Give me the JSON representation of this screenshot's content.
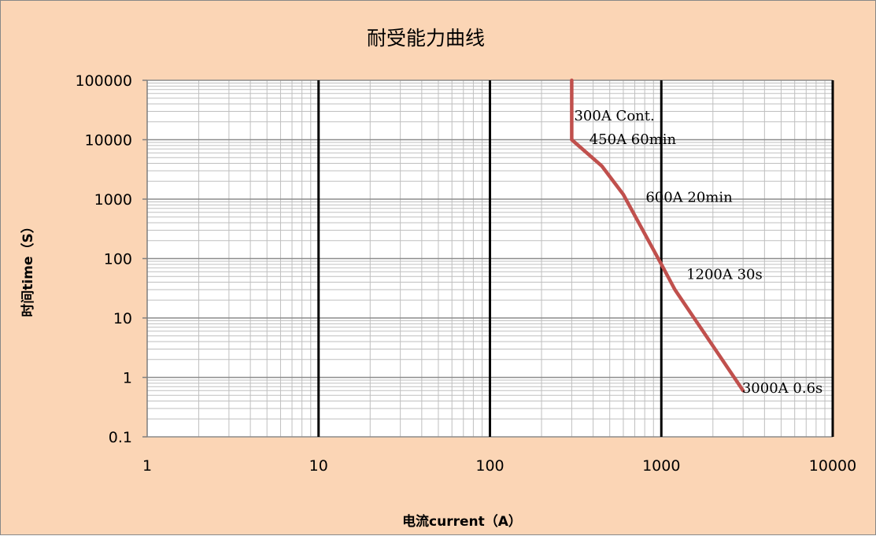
{
  "chart_data": {
    "type": "line",
    "title": "耐受能力曲线",
    "xlabel": "电流current（A）",
    "ylabel": "时间time（S）",
    "x_scale": "log",
    "y_scale": "log",
    "xlim": [
      1,
      10000
    ],
    "ylim": [
      0.1,
      100000
    ],
    "x_ticks": [
      "1",
      "10",
      "100",
      "1000",
      "10000"
    ],
    "y_ticks": [
      "100000",
      "10000",
      "1000",
      "100",
      "10",
      "1",
      "0.1"
    ],
    "grid": "log minor and major; decade lines emphasized",
    "legend": "none",
    "series": [
      {
        "color": "#c0504d",
        "x": [
          300,
          300,
          450,
          600,
          1000,
          1200,
          3000
        ],
        "y": [
          100000,
          10000,
          3600,
          1200,
          80,
          30,
          0.6
        ]
      }
    ],
    "annotations": [
      {
        "text": "300A Cont.",
        "x": 310,
        "y": 21000
      },
      {
        "text": "450A 60min",
        "x": 380,
        "y": 8500
      },
      {
        "text": "600A 20min",
        "x": 810,
        "y": 900
      },
      {
        "text": "1200A 30s",
        "x": 1400,
        "y": 45
      },
      {
        "text": "3000A 0.6s",
        "x": 2960,
        "y": 0.55
      }
    ]
  }
}
